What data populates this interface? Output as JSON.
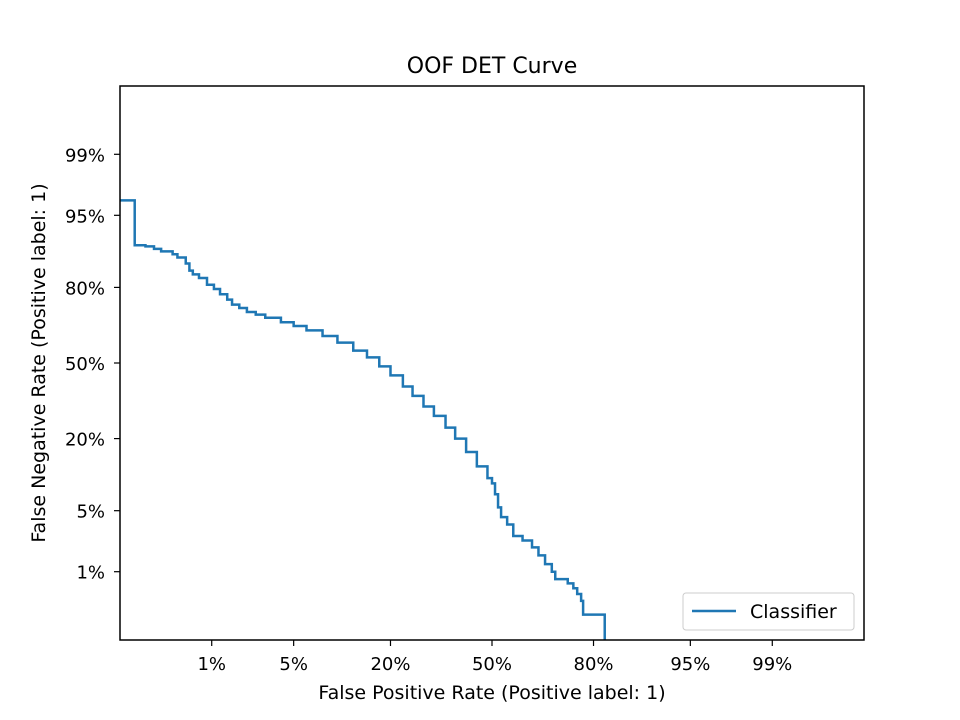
{
  "chart_data": {
    "type": "line",
    "title": "OOF DET Curve",
    "xlabel": "False Positive Rate (Positive label: 1)",
    "ylabel": "False Negative Rate (Positive label: 1)",
    "x_scale": "probit",
    "y_scale": "probit",
    "xlim": [
      0.001,
      0.999
    ],
    "ylim": [
      0.001,
      0.999
    ],
    "grid": false,
    "legend_position": "lower-right",
    "ticks": [
      {
        "value": 0.01,
        "label": "1%"
      },
      {
        "value": 0.05,
        "label": "5%"
      },
      {
        "value": 0.2,
        "label": "20%"
      },
      {
        "value": 0.5,
        "label": "50%"
      },
      {
        "value": 0.8,
        "label": "80%"
      },
      {
        "value": 0.95,
        "label": "95%"
      },
      {
        "value": 0.99,
        "label": "99%"
      }
    ],
    "series": [
      {
        "name": "Classifier",
        "color": "#1f77b4",
        "steps": true,
        "points": [
          [
            0.001,
            0.965
          ],
          [
            0.0015,
            0.965
          ],
          [
            0.0015,
            0.905
          ],
          [
            0.002,
            0.903
          ],
          [
            0.0025,
            0.898
          ],
          [
            0.003,
            0.893
          ],
          [
            0.004,
            0.887
          ],
          [
            0.0045,
            0.88
          ],
          [
            0.0055,
            0.866
          ],
          [
            0.006,
            0.848
          ],
          [
            0.0065,
            0.838
          ],
          [
            0.0075,
            0.828
          ],
          [
            0.009,
            0.808
          ],
          [
            0.0105,
            0.795
          ],
          [
            0.012,
            0.778
          ],
          [
            0.014,
            0.76
          ],
          [
            0.0155,
            0.742
          ],
          [
            0.018,
            0.73
          ],
          [
            0.021,
            0.715
          ],
          [
            0.025,
            0.705
          ],
          [
            0.03,
            0.693
          ],
          [
            0.04,
            0.675
          ],
          [
            0.05,
            0.66
          ],
          [
            0.062,
            0.642
          ],
          [
            0.08,
            0.618
          ],
          [
            0.1,
            0.59
          ],
          [
            0.125,
            0.555
          ],
          [
            0.15,
            0.525
          ],
          [
            0.175,
            0.485
          ],
          [
            0.2,
            0.445
          ],
          [
            0.23,
            0.397
          ],
          [
            0.255,
            0.357
          ],
          [
            0.285,
            0.314
          ],
          [
            0.315,
            0.278
          ],
          [
            0.35,
            0.236
          ],
          [
            0.38,
            0.2
          ],
          [
            0.415,
            0.161
          ],
          [
            0.45,
            0.125
          ],
          [
            0.485,
            0.1
          ],
          [
            0.5,
            0.09
          ],
          [
            0.51,
            0.072
          ],
          [
            0.52,
            0.054
          ],
          [
            0.53,
            0.043
          ],
          [
            0.55,
            0.036
          ],
          [
            0.57,
            0.027
          ],
          [
            0.6,
            0.024
          ],
          [
            0.63,
            0.02
          ],
          [
            0.65,
            0.016
          ],
          [
            0.67,
            0.0125
          ],
          [
            0.69,
            0.01
          ],
          [
            0.7,
            0.008
          ],
          [
            0.725,
            0.008
          ],
          [
            0.735,
            0.007
          ],
          [
            0.75,
            0.006
          ],
          [
            0.76,
            0.005
          ],
          [
            0.77,
            0.004
          ],
          [
            0.775,
            0.0025
          ],
          [
            0.825,
            0.0025
          ],
          [
            0.825,
            0.001
          ]
        ]
      }
    ]
  }
}
